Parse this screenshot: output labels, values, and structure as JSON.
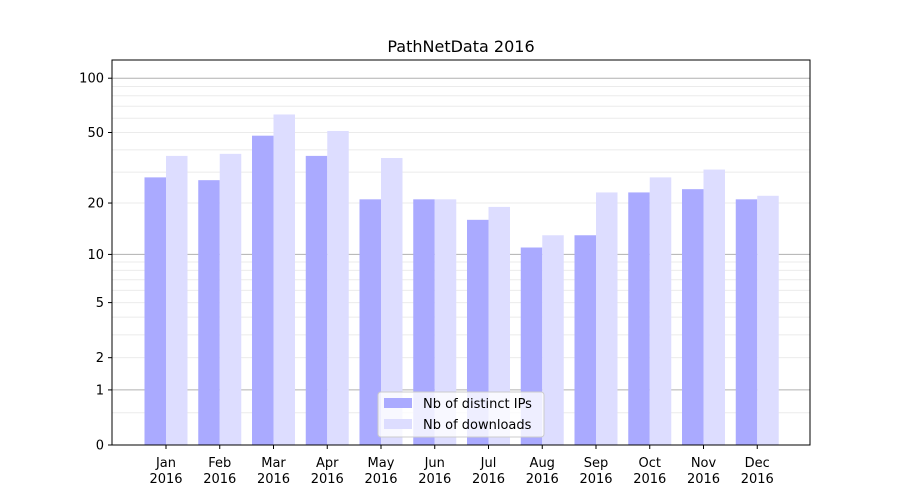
{
  "chart_data": {
    "type": "bar",
    "title": "PathNetData 2016",
    "xlabel": "",
    "ylabel": "",
    "yscale": "log(1+y)",
    "ylim": [
      0,
      126
    ],
    "yticks": [
      0,
      1,
      2,
      5,
      10,
      20,
      50,
      100
    ],
    "grid": true,
    "legend_position": "bottom-center",
    "categories": [
      "Jan\n2016",
      "Feb\n2016",
      "Mar\n2016",
      "Apr\n2016",
      "May\n2016",
      "Jun\n2016",
      "Jul\n2016",
      "Aug\n2016",
      "Sep\n2016",
      "Oct\n2016",
      "Nov\n2016",
      "Dec\n2016"
    ],
    "series": [
      {
        "name": "Nb of distinct IPs",
        "color": "#aaaaff",
        "values": [
          28,
          27,
          48,
          37,
          21,
          21,
          16,
          11,
          13,
          23,
          24,
          21
        ]
      },
      {
        "name": "Nb of downloads",
        "color": "#ddddff",
        "values": [
          37,
          38,
          63,
          51,
          36,
          21,
          19,
          13,
          23,
          28,
          31,
          22
        ]
      }
    ]
  }
}
